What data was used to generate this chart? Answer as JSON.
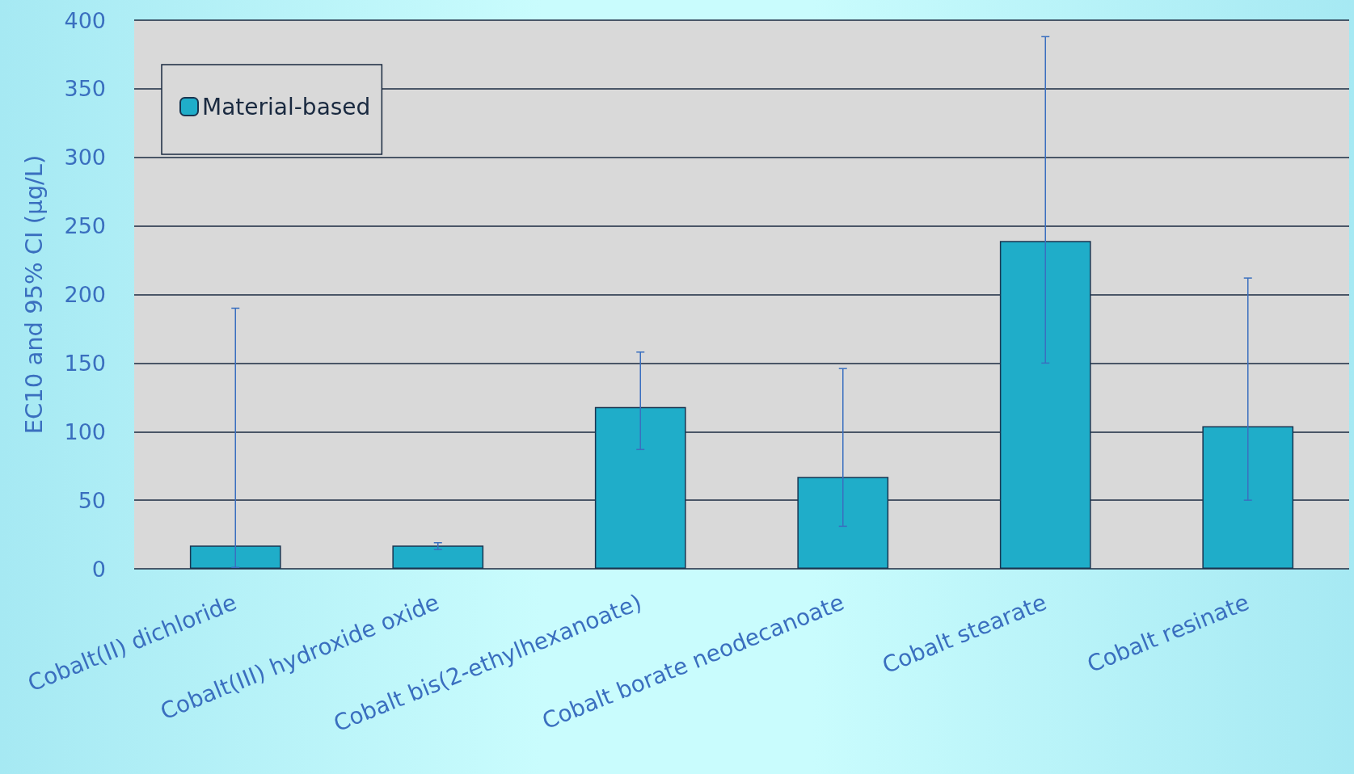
{
  "chart_data": {
    "type": "bar",
    "ylabel": "EC10 and 95% CI (µg/L)",
    "categories": [
      "Cobalt(II) dichloride",
      "Cobalt(III) hydroxide oxide",
      "Cobalt bis(2-ethylhexanoate)",
      "Cobalt borate neodecanoate",
      "Cobalt stearate",
      "Cobalt resinate"
    ],
    "series": [
      {
        "name": "Material-based",
        "color": "#1fadc9",
        "values": [
          17,
          17,
          118,
          67,
          239,
          104
        ],
        "errors": [
          [
            1,
            190
          ],
          [
            14,
            19
          ],
          [
            87,
            158
          ],
          [
            31,
            146
          ],
          [
            150,
            388
          ],
          [
            50,
            212
          ]
        ]
      }
    ],
    "ylim": [
      0,
      400
    ],
    "yticks": [
      0,
      50,
      100,
      150,
      200,
      250,
      300,
      350,
      400
    ],
    "grid": "y",
    "legend": "top left"
  }
}
